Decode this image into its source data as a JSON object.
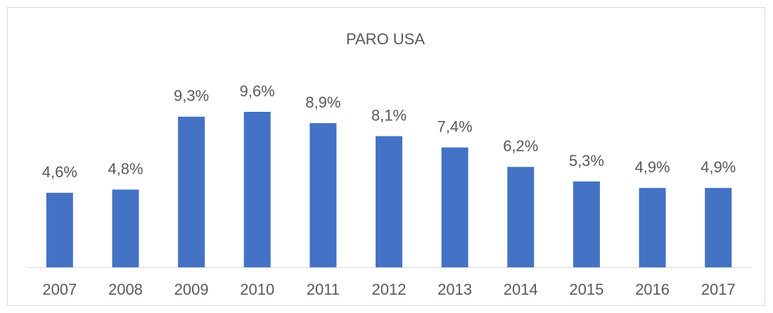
{
  "chart_data": {
    "type": "bar",
    "title": "PARO USA",
    "categories": [
      "2007",
      "2008",
      "2009",
      "2010",
      "2011",
      "2012",
      "2013",
      "2014",
      "2015",
      "2016",
      "2017"
    ],
    "values": [
      4.6,
      4.8,
      9.3,
      9.6,
      8.9,
      8.1,
      7.4,
      6.2,
      5.3,
      4.9,
      4.9
    ],
    "value_labels": [
      "4,6%",
      "4,8%",
      "9,3%",
      "9,6%",
      "8,9%",
      "8,1%",
      "7,4%",
      "6,2%",
      "5,3%",
      "4,9%",
      "4,9%"
    ],
    "color": "#4472c4"
  }
}
